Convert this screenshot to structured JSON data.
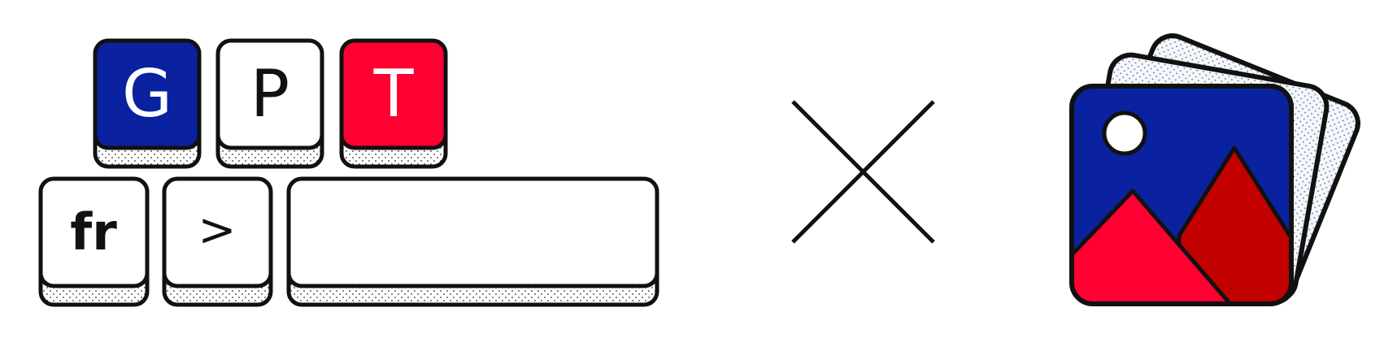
{
  "keys": {
    "g": "G",
    "p": "P",
    "t": "T",
    "lang": "fr",
    "arrow": ">",
    "space": ""
  },
  "separator": "×",
  "colors": {
    "blue": "#0a22a0",
    "red": "#ff0033",
    "dark_red": "#c20000",
    "white": "#ffffff",
    "outline": "#111111",
    "stipple": "#5a6a8a",
    "card_back": "#f4f7fb"
  },
  "icons": {
    "keyboard": "keyboard-keys-icon",
    "times": "times-icon",
    "photo_stack": "photo-stack-icon"
  }
}
